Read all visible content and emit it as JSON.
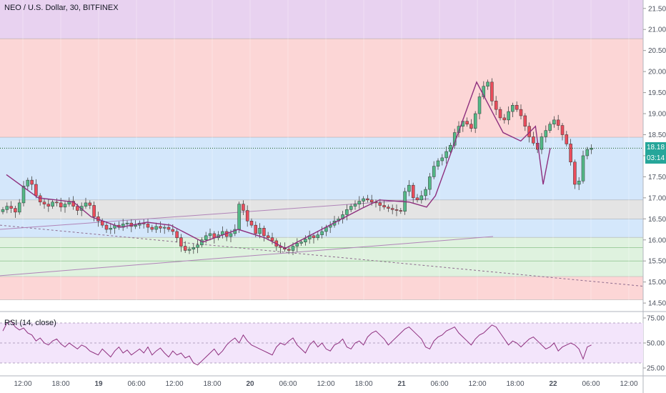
{
  "header": {
    "symbol_title": "NEO / U.S. Dollar, 30, BITFINEX",
    "rsi_title": "RSI (14, close)"
  },
  "price_tags": {
    "last_price": "18.18",
    "countdown": "03:14"
  },
  "colors": {
    "up_candle": "#53b987",
    "down_candle": "#eb4d5c",
    "pattern_line": "#8e2f7e",
    "tag_green": "#26a69a",
    "purple_zone": "#e8d2f0",
    "red_zone": "#fcd6d6",
    "blue_zone": "#d4e7fb",
    "gray_zone": "#e4e4e4",
    "green_zone": "#dff2df",
    "rsi_band": "#f3e5fb"
  },
  "chart_data": [
    {
      "type": "candlestick",
      "title": "NEO / U.S. Dollar, 30, BITFINEX",
      "ylim": [
        14.4,
        21.7
      ],
      "y_ticks": [
        "21.50",
        "21.00",
        "20.50",
        "20.00",
        "19.50",
        "19.00",
        "18.50",
        "18.00",
        "17.50",
        "17.00",
        "16.50",
        "16.00",
        "15.50",
        "15.00",
        "14.50"
      ],
      "x_ticks": [
        "12:00",
        "18:00",
        "19",
        "06:00",
        "12:00",
        "18:00",
        "20",
        "06:00",
        "12:00",
        "18:00",
        "21",
        "06:00",
        "12:00",
        "18:00",
        "22",
        "06:00",
        "12:00"
      ],
      "zones": [
        {
          "from": 20.78,
          "to": 21.7,
          "color": "purple"
        },
        {
          "from": 18.44,
          "to": 20.78,
          "color": "red"
        },
        {
          "from": 16.95,
          "to": 18.44,
          "color": "blue"
        },
        {
          "from": 16.5,
          "to": 16.95,
          "color": "gray"
        },
        {
          "from": 16.06,
          "to": 16.5,
          "color": "blue"
        },
        {
          "from": 15.13,
          "to": 16.06,
          "color": "green"
        },
        {
          "from": 14.58,
          "to": 15.13,
          "color": "red"
        }
      ],
      "close_path": [
        16.72,
        16.8,
        16.75,
        16.66,
        16.88,
        17.28,
        17.42,
        17.32,
        17.05,
        16.9,
        16.85,
        16.8,
        16.9,
        16.88,
        16.78,
        16.85,
        16.92,
        16.8,
        16.7,
        16.8,
        16.88,
        16.82,
        16.55,
        16.45,
        16.35,
        16.25,
        16.28,
        16.35,
        16.3,
        16.38,
        16.4,
        16.32,
        16.35,
        16.4,
        16.38,
        16.3,
        16.25,
        16.32,
        16.28,
        16.3,
        16.25,
        16.2,
        16.05,
        15.85,
        15.75,
        15.78,
        15.82,
        15.88,
        16.0,
        16.1,
        16.15,
        16.05,
        16.12,
        16.2,
        16.08,
        16.15,
        16.25,
        16.85,
        16.7,
        16.45,
        16.35,
        16.15,
        16.28,
        16.1,
        16.05,
        15.98,
        15.85,
        15.82,
        15.78,
        15.75,
        15.85,
        15.92,
        15.95,
        16.02,
        16.1,
        16.05,
        16.12,
        16.2,
        16.3,
        16.35,
        16.45,
        16.5,
        16.6,
        16.72,
        16.8,
        16.85,
        16.92,
        16.98,
        16.95,
        16.9,
        16.88,
        16.82,
        16.78,
        16.75,
        16.72,
        16.7,
        16.68,
        17.15,
        17.3,
        17.0,
        16.95,
        17.05,
        17.2,
        17.5,
        17.75,
        17.88,
        17.95,
        18.1,
        18.25,
        18.55,
        18.7,
        18.82,
        18.75,
        18.65,
        19.0,
        19.4,
        19.65,
        19.75,
        19.3,
        19.1,
        18.9,
        18.85,
        19.05,
        19.2,
        19.1,
        18.95,
        18.7,
        18.45,
        18.3,
        18.15,
        18.45,
        18.6,
        18.75,
        18.85,
        18.72,
        18.5,
        18.28,
        17.85,
        17.32,
        17.4,
        18.0,
        18.15,
        18.18
      ],
      "zigzag": [
        [
          17.55,
          0.6
        ],
        [
          17.0,
          6
        ],
        [
          16.9,
          12
        ],
        [
          16.55,
          15
        ],
        [
          16.3,
          20
        ],
        [
          16.42,
          24.5
        ],
        [
          16.35,
          28.5
        ],
        [
          15.95,
          34
        ],
        [
          16.25,
          40
        ],
        [
          16.05,
          44.5
        ],
        [
          15.8,
          48
        ],
        [
          16.75,
          61
        ],
        [
          16.95,
          64
        ],
        [
          16.9,
          69
        ],
        [
          16.78,
          72
        ],
        [
          17.05,
          73.5
        ],
        [
          19.75,
          80.5
        ],
        [
          18.55,
          85
        ],
        [
          18.35,
          88
        ],
        [
          18.7,
          90.5
        ],
        [
          17.32,
          91.8
        ],
        [
          18.18,
          93
        ]
      ],
      "last_price": 18.18
    },
    {
      "type": "line",
      "title": "RSI (14, close)",
      "ylim": [
        20,
        80
      ],
      "y_ticks": [
        "75.00",
        "50.00",
        "25.00"
      ],
      "bands": [
        30,
        70
      ],
      "values": [
        62,
        70,
        72,
        66,
        63,
        65,
        60,
        58,
        52,
        55,
        50,
        48,
        52,
        54,
        49,
        46,
        50,
        47,
        44,
        48,
        46,
        42,
        40,
        38,
        44,
        40,
        36,
        42,
        46,
        40,
        43,
        38,
        41,
        44,
        40,
        46,
        38,
        42,
        45,
        40,
        36,
        42,
        38,
        40,
        35,
        37,
        30,
        28,
        32,
        36,
        40,
        44,
        38,
        42,
        48,
        52,
        55,
        50,
        58,
        52,
        48,
        46,
        44,
        42,
        40,
        38,
        46,
        50,
        48,
        52,
        55,
        48,
        44,
        40,
        48,
        52,
        46,
        50,
        44,
        42,
        48,
        50,
        54,
        46,
        44,
        50,
        52,
        48,
        56,
        60,
        62,
        58,
        54,
        48,
        52,
        56,
        60,
        64,
        66,
        62,
        58,
        54,
        46,
        44,
        52,
        56,
        58,
        62,
        64,
        66,
        60,
        56,
        52,
        48,
        54,
        58,
        60,
        64,
        68,
        66,
        60,
        54,
        48,
        52,
        50,
        46,
        50,
        54,
        56,
        52,
        48,
        44,
        46,
        50,
        42,
        46,
        48,
        50,
        48,
        44,
        34,
        46,
        48
      ]
    }
  ]
}
